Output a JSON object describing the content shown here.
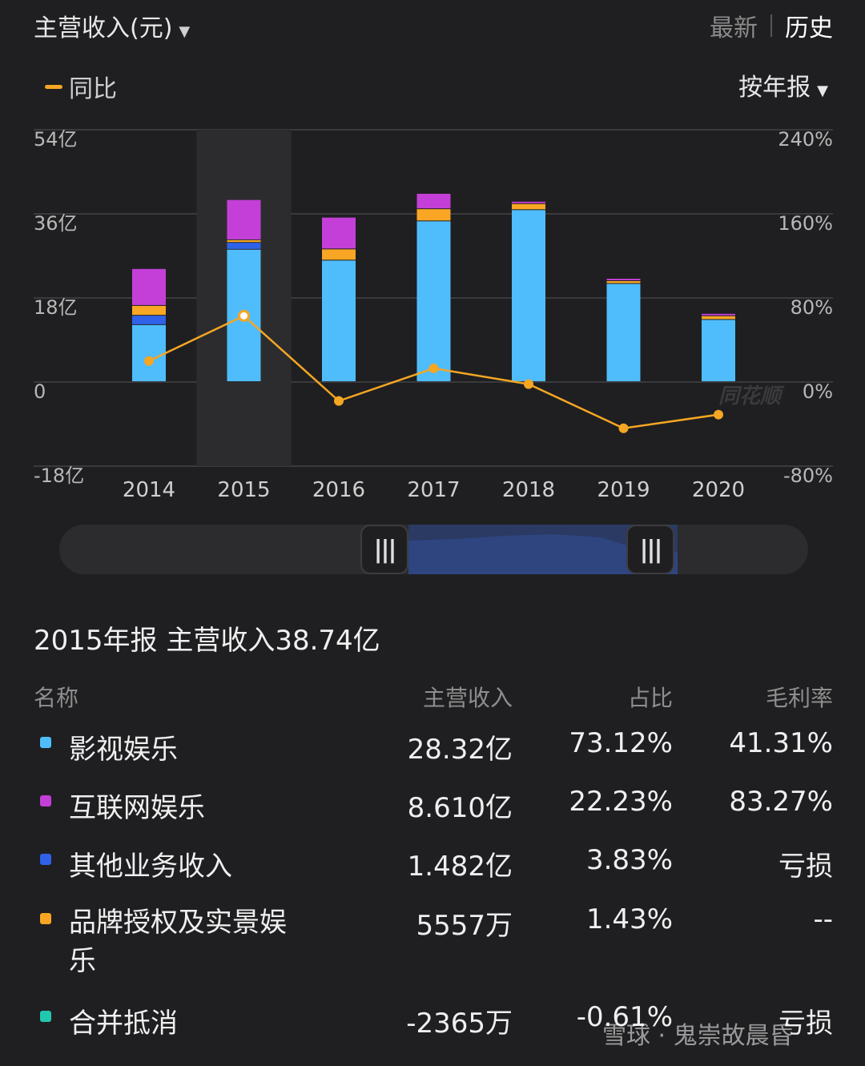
{
  "header": {
    "title": "主营收入(元)",
    "latest": "最新",
    "history": "历史"
  },
  "legend": {
    "label": "同比",
    "color": "#f5a623"
  },
  "period_selector": "按年报",
  "chart_data": {
    "type": "bar",
    "stacked": true,
    "categories": [
      "2014",
      "2015",
      "2016",
      "2017",
      "2018",
      "2019",
      "2020"
    ],
    "selected_category": "2015",
    "y_left_ticks": [
      "54亿",
      "36亿",
      "18亿",
      "0",
      "-18亿"
    ],
    "y_right_ticks": [
      "240%",
      "160%",
      "80%",
      "0%",
      "-80%"
    ],
    "ylim_left": [
      -18,
      54
    ],
    "ylim_right": [
      -80,
      240
    ],
    "series": [
      {
        "name": "影视娱乐",
        "color": "#4fbdfb",
        "values": [
          12.2,
          28.32,
          26.0,
          34.4,
          36.8,
          21.0,
          13.3
        ]
      },
      {
        "name": "其他业务收入",
        "color": "#2f62e8",
        "values": [
          2.0,
          1.482,
          0,
          0,
          0,
          0,
          0
        ]
      },
      {
        "name": "品牌授权及实景娱乐",
        "color": "#f8a623",
        "values": [
          2.1,
          0.5557,
          2.4,
          2.6,
          1.3,
          0.6,
          0.8
        ]
      },
      {
        "name": "互联网娱乐",
        "color": "#c43fd8",
        "values": [
          7.9,
          8.61,
          6.8,
          3.3,
          0.5,
          0.5,
          0.5
        ]
      }
    ],
    "yoy": {
      "name": "同比",
      "color": "#f5a623",
      "values": [
        20,
        63,
        -18,
        13,
        -2,
        -44,
        -31
      ]
    }
  },
  "summary": {
    "title": "2015年报 主营收入38.74亿"
  },
  "table": {
    "headers": [
      "名称",
      "主营收入",
      "占比",
      "毛利率"
    ],
    "rows": [
      {
        "color": "#4fbdfb",
        "name": "影视娱乐",
        "revenue": "28.32亿",
        "share": "73.12%",
        "margin": "41.31%"
      },
      {
        "color": "#c43fd8",
        "name": "互联网娱乐",
        "revenue": "8.610亿",
        "share": "22.23%",
        "margin": "83.27%"
      },
      {
        "color": "#2f62e8",
        "name": "其他业务收入",
        "revenue": "1.482亿",
        "share": "3.83%",
        "margin": "亏损"
      },
      {
        "color": "#f8a623",
        "name": "品牌授权及实景娱乐",
        "revenue": "5557万",
        "share": "1.43%",
        "margin": "--"
      },
      {
        "color": "#22c7b0",
        "name": "合并抵消",
        "revenue": "-2365万",
        "share": "-0.61%",
        "margin": "亏损"
      }
    ]
  },
  "watermark": {
    "chart": "同花顺",
    "footer": "雪球 · 鬼崇故晨昏"
  }
}
